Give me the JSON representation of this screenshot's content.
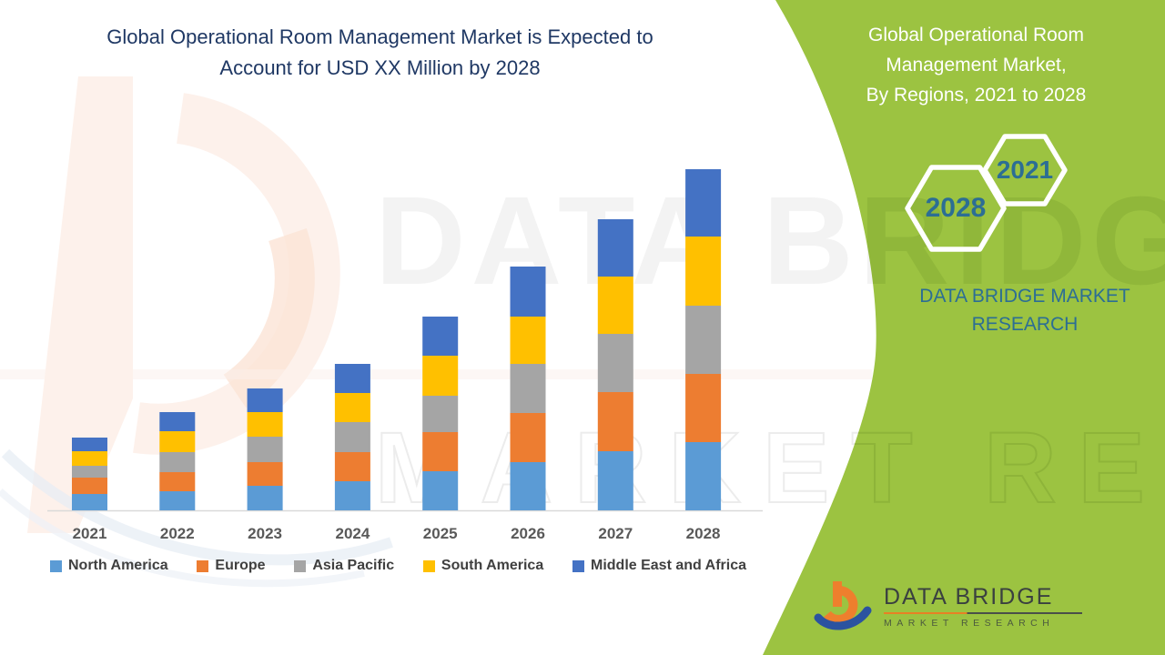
{
  "title": {
    "line1": "Global Operational Room Management Market is Expected to",
    "line2": "Account for USD XX Million by 2028"
  },
  "panel": {
    "bg_color": "#9CC341",
    "text_color": "#2C6E94",
    "heading_lines": [
      "Global Operational Room",
      "Management Market,",
      "By Regions, 2021 to 2028"
    ],
    "hexagons": [
      {
        "label": "2021"
      },
      {
        "label": "2028"
      }
    ],
    "brand_lines": [
      "DATA BRIDGE MARKET",
      "RESEARCH"
    ]
  },
  "watermark": {
    "line1": "DATA BRIDGE",
    "line2": "MARKET RESEARCH"
  },
  "logo": {
    "title": "DATA BRIDGE",
    "subtitle": "MARKET  RESEARCH",
    "orange": "#EE7F2D",
    "blue": "#2B53A0"
  },
  "chart_data": {
    "type": "bar",
    "stacked": true,
    "title": "Global Operational Room Management Market is Expected to Account for USD XX Million by 2028",
    "xlabel": "",
    "ylabel": "",
    "y_axis_visible": false,
    "grid": false,
    "legend_position": "bottom",
    "categories": [
      "2021",
      "2022",
      "2023",
      "2024",
      "2025",
      "2026",
      "2027",
      "2028"
    ],
    "series": [
      {
        "name": "North America",
        "color": "#5B9BD5",
        "values": [
          18,
          21,
          27,
          32,
          43,
          53,
          65,
          75
        ]
      },
      {
        "name": "Europe",
        "color": "#ED7D31",
        "values": [
          18,
          21,
          26,
          32,
          43,
          54,
          65,
          75
        ]
      },
      {
        "name": "Asia Pacific",
        "color": "#A5A5A5",
        "values": [
          13,
          22,
          28,
          33,
          40,
          54,
          64,
          75
        ]
      },
      {
        "name": "South America",
        "color": "#FFC000",
        "values": [
          16,
          23,
          27,
          32,
          44,
          52,
          63,
          76
        ]
      },
      {
        "name": "Middle East and Africa",
        "color": "#4472C4",
        "values": [
          15,
          21,
          26,
          32,
          43,
          55,
          63,
          74
        ]
      }
    ],
    "totals": [
      80,
      108,
      134,
      161,
      213,
      268,
      320,
      375
    ],
    "value_note": "Relative stacked heights estimated from chart pixels; numeric axis not shown (values undisclosed as USD XX Million)"
  }
}
